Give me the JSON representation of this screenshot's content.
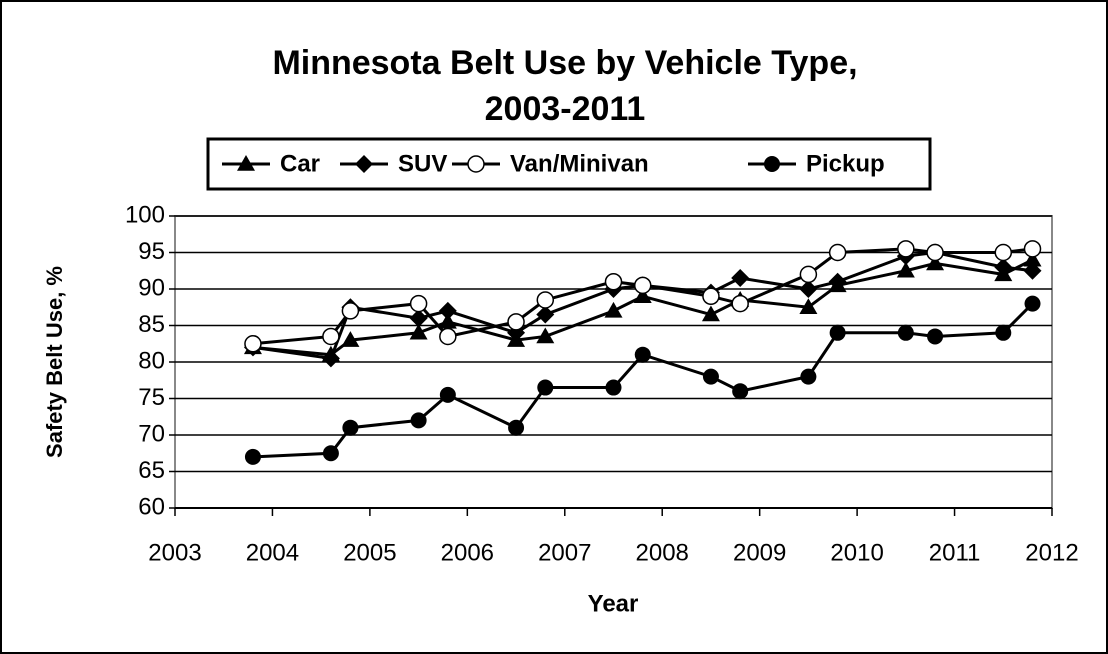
{
  "chart_data": {
    "type": "line",
    "title": "Minnesota Belt Use by Vehicle Type,",
    "subtitle": "2003-2011",
    "xlabel": "Year",
    "ylabel": "Safety Belt Use, %",
    "x": [
      2003.8,
      2004.6,
      2004.8,
      2005.5,
      2005.8,
      2006.5,
      2006.8,
      2007.5,
      2007.8,
      2008.5,
      2008.8,
      2009.5,
      2009.8,
      2010.5,
      2010.8,
      2011.5,
      2011.8
    ],
    "series": [
      {
        "name": "Car",
        "color": "#000000",
        "marker": "triangle",
        "values": [
          82,
          81,
          83,
          84,
          85.5,
          83,
          83.5,
          87,
          89,
          86.5,
          88.5,
          87.5,
          90.5,
          92.5,
          93.5,
          92,
          94
        ]
      },
      {
        "name": "SUV",
        "color": "#000000",
        "marker": "diamond",
        "values": [
          82,
          80.5,
          87.5,
          86,
          87,
          84,
          86.5,
          90,
          90.5,
          89.5,
          91.5,
          90,
          91,
          94.5,
          95,
          93,
          92.5
        ]
      },
      {
        "name": "Van/Minivan",
        "color": "#000000",
        "marker": "open-circle",
        "values": [
          82.5,
          83.5,
          87,
          88,
          83.5,
          85.5,
          88.5,
          91,
          90.5,
          89,
          88,
          92,
          95,
          95.5,
          95,
          95,
          95.5
        ]
      },
      {
        "name": "Pickup",
        "color": "#000000",
        "marker": "circle",
        "values": [
          67,
          67.5,
          71,
          72,
          75.5,
          71,
          76.5,
          76.5,
          81,
          78,
          76,
          78,
          84,
          84,
          83.5,
          84,
          88
        ]
      }
    ],
    "xlim": [
      2003,
      2012
    ],
    "xticks": [
      2003,
      2004,
      2005,
      2006,
      2007,
      2008,
      2009,
      2010,
      2011,
      2012
    ],
    "ylim": [
      60,
      100
    ],
    "yticks": [
      60,
      65,
      70,
      75,
      80,
      85,
      90,
      95,
      100
    ],
    "grid": true,
    "legend": "top"
  }
}
